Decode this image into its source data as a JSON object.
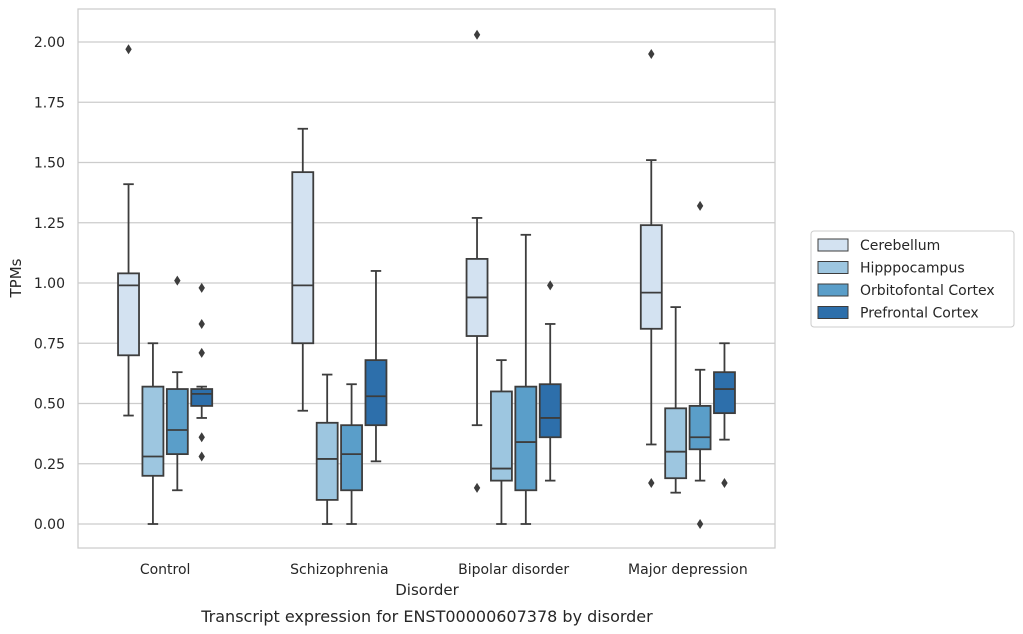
{
  "chart_data": {
    "type": "box",
    "title": "Transcript expression for ENST00000607378 by disorder",
    "xlabel": "Disorder",
    "ylabel": "TPMs",
    "ylim": [
      -0.1,
      2.14
    ],
    "yticks": [
      "0.00",
      "0.25",
      "0.50",
      "0.75",
      "1.00",
      "1.25",
      "1.50",
      "1.75",
      "2.00"
    ],
    "grid": "horizontal",
    "legend_position": "right",
    "categories": [
      "Control",
      "Schizophrenia",
      "Bipolar disorder",
      "Major depression"
    ],
    "series": [
      {
        "name": "Cerebellum",
        "color": "#d3e2f1",
        "boxes": [
          {
            "q1": 0.7,
            "median": 0.99,
            "q3": 1.04,
            "whislo": 0.45,
            "whishi": 1.41,
            "fliers": [
              1.97
            ]
          },
          {
            "q1": 0.75,
            "median": 0.99,
            "q3": 1.46,
            "whislo": 0.47,
            "whishi": 1.64,
            "fliers": []
          },
          {
            "q1": 0.78,
            "median": 0.94,
            "q3": 1.1,
            "whislo": 0.41,
            "whishi": 1.27,
            "fliers": [
              2.03,
              0.15
            ]
          },
          {
            "q1": 0.81,
            "median": 0.96,
            "q3": 1.24,
            "whislo": 0.33,
            "whishi": 1.51,
            "fliers": [
              1.95,
              0.17
            ]
          }
        ]
      },
      {
        "name": "Hipppocampus",
        "color": "#9dc6e0",
        "boxes": [
          {
            "q1": 0.2,
            "median": 0.28,
            "q3": 0.57,
            "whislo": 0.0,
            "whishi": 0.75,
            "fliers": []
          },
          {
            "q1": 0.1,
            "median": 0.27,
            "q3": 0.42,
            "whislo": 0.0,
            "whishi": 0.62,
            "fliers": []
          },
          {
            "q1": 0.18,
            "median": 0.23,
            "q3": 0.55,
            "whislo": 0.0,
            "whishi": 0.68,
            "fliers": []
          },
          {
            "q1": 0.19,
            "median": 0.3,
            "q3": 0.48,
            "whislo": 0.13,
            "whishi": 0.9,
            "fliers": []
          }
        ]
      },
      {
        "name": "Orbitofontal Cortex",
        "color": "#5a9ec9",
        "boxes": [
          {
            "q1": 0.29,
            "median": 0.39,
            "q3": 0.56,
            "whislo": 0.14,
            "whishi": 0.63,
            "fliers": [
              1.01
            ]
          },
          {
            "q1": 0.14,
            "median": 0.29,
            "q3": 0.41,
            "whislo": 0.0,
            "whishi": 0.58,
            "fliers": []
          },
          {
            "q1": 0.14,
            "median": 0.34,
            "q3": 0.57,
            "whislo": 0.0,
            "whishi": 1.2,
            "fliers": []
          },
          {
            "q1": 0.31,
            "median": 0.36,
            "q3": 0.49,
            "whislo": 0.18,
            "whishi": 0.64,
            "fliers": [
              1.32,
              0.0
            ]
          }
        ]
      },
      {
        "name": "Prefrontal Cortex",
        "color": "#2d6fab",
        "boxes": [
          {
            "q1": 0.49,
            "median": 0.54,
            "q3": 0.56,
            "whislo": 0.44,
            "whishi": 0.57,
            "fliers": [
              0.98,
              0.83,
              0.71,
              0.36,
              0.28
            ]
          },
          {
            "q1": 0.41,
            "median": 0.53,
            "q3": 0.68,
            "whislo": 0.26,
            "whishi": 1.05,
            "fliers": []
          },
          {
            "q1": 0.36,
            "median": 0.44,
            "q3": 0.58,
            "whislo": 0.18,
            "whishi": 0.83,
            "fliers": [
              0.99
            ]
          },
          {
            "q1": 0.46,
            "median": 0.56,
            "q3": 0.63,
            "whislo": 0.35,
            "whishi": 0.75,
            "fliers": [
              0.17
            ]
          }
        ]
      }
    ]
  }
}
